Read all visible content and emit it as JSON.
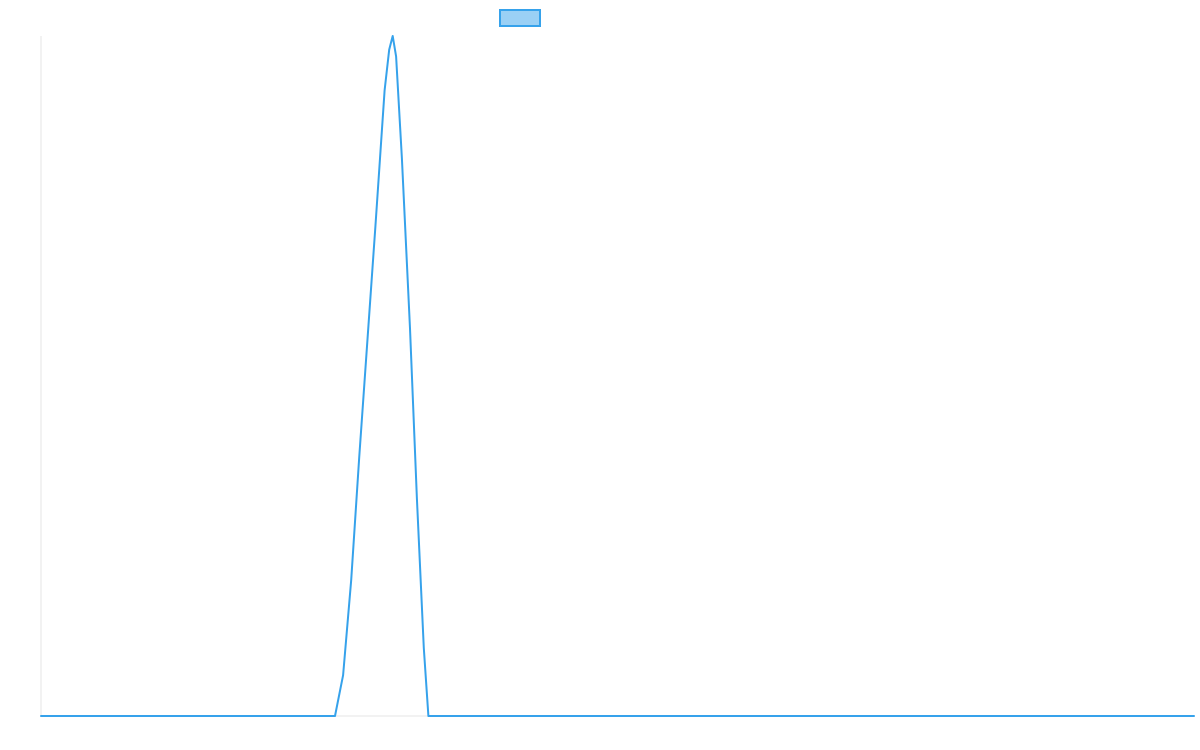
{
  "chart_data": {
    "type": "line",
    "title": "",
    "xlabel": "",
    "ylabel": "",
    "legend": {
      "placement": "top-center",
      "entries": [
        {
          "label": "",
          "color": "#36a2eb",
          "fill": "#9ad0f5"
        }
      ]
    },
    "grid": false,
    "xlim": [
      0,
      100
    ],
    "ylim": [
      0,
      1
    ],
    "series": [
      {
        "color": "#36a2eb",
        "x": [
          0,
          25.5,
          26.2,
          26.9,
          27.6,
          28.3,
          29.0,
          29.4,
          29.8,
          30.2,
          30.5,
          30.8,
          31.3,
          32.0,
          32.6,
          33.2,
          33.6,
          100
        ],
        "y": [
          0,
          0,
          0.06,
          0.2,
          0.38,
          0.55,
          0.72,
          0.82,
          0.92,
          0.98,
          1.0,
          0.97,
          0.82,
          0.57,
          0.32,
          0.1,
          0,
          0
        ]
      }
    ]
  }
}
